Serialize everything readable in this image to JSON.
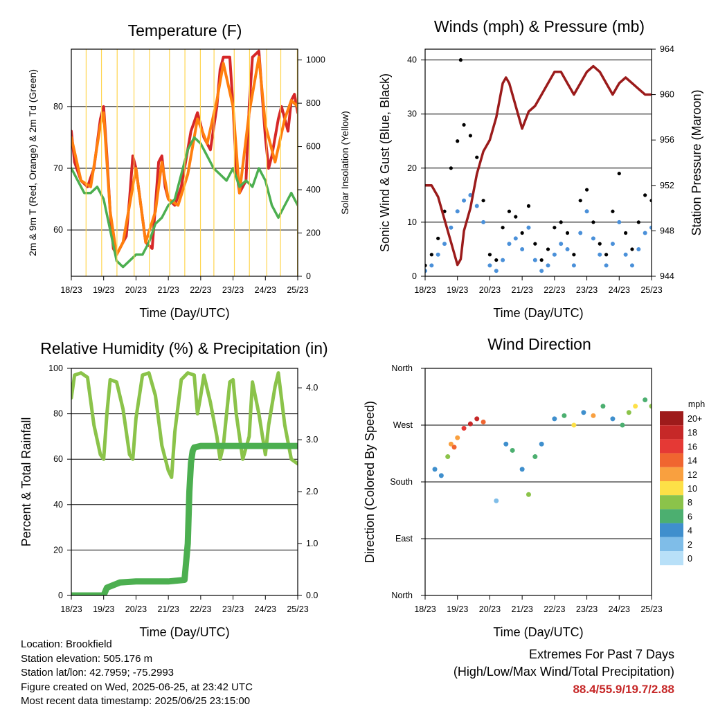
{
  "chart_data": [
    {
      "type": "line",
      "title": "Temperature (F)",
      "xlabel": "Time (Day/UTC)",
      "ylabel": "2m & 9m T (Red, Orange) & 2m Td (Green)",
      "y2label": "Solar Insolation (Yellow)",
      "xticks": [
        "18/23",
        "19/23",
        "20/23",
        "21/23",
        "22/23",
        "23/23",
        "24/23",
        "25/23"
      ],
      "ylim": [
        52.5,
        89.3
      ],
      "yticks": [
        60,
        70,
        80
      ],
      "y2lim": [
        0,
        1050
      ],
      "y2ticks": [
        0,
        200,
        400,
        600,
        800,
        1000
      ],
      "grid": "horizontal",
      "series": [
        {
          "color": "#d62728",
          "x": [
            0,
            0.1,
            0.3,
            0.5,
            0.7,
            0.9,
            1.0,
            1.1,
            1.2,
            1.3,
            1.4,
            1.6,
            1.7,
            1.8,
            1.9,
            2.0,
            2.2,
            2.3,
            2.5,
            2.6,
            2.7,
            2.8,
            2.9,
            3.0,
            3.2,
            3.4,
            3.5,
            3.7,
            3.9,
            4.0,
            4.1,
            4.3,
            4.5,
            4.6,
            4.7,
            4.9,
            5.0,
            5.1,
            5.2,
            5.4,
            5.5,
            5.6,
            5.8,
            5.9,
            6.0,
            6.1,
            6.2,
            6.4,
            6.5,
            6.6,
            6.7,
            6.8,
            6.9,
            7.0
          ],
          "y": [
            76,
            71,
            68,
            67,
            70,
            78,
            80,
            72,
            63,
            57,
            56,
            58,
            59,
            65,
            72,
            70,
            62,
            58,
            57,
            64,
            71,
            72,
            67,
            65,
            64,
            67,
            70,
            76,
            79,
            77,
            75,
            73,
            80,
            86,
            88,
            88,
            80,
            70,
            66,
            68,
            80,
            88,
            89,
            82,
            75,
            70,
            72,
            78,
            80,
            78,
            76,
            81,
            82,
            79
          ]
        },
        {
          "color": "#ff7f0e",
          "x": [
            0,
            0.3,
            0.6,
            0.9,
            1.0,
            1.2,
            1.4,
            1.6,
            1.8,
            2.0,
            2.3,
            2.6,
            2.8,
            3.0,
            3.3,
            3.6,
            3.9,
            4.2,
            4.5,
            4.7,
            5.0,
            5.2,
            5.5,
            5.8,
            6.0,
            6.3,
            6.6,
            6.8,
            7.0
          ],
          "y": [
            75,
            68,
            67,
            77,
            79,
            63,
            56,
            58,
            64,
            70,
            58,
            63,
            71,
            65,
            64,
            69,
            78,
            74,
            81,
            87,
            80,
            66,
            79,
            88,
            77,
            71,
            78,
            81,
            80
          ]
        },
        {
          "color": "#4caf50",
          "x": [
            0,
            0.2,
            0.4,
            0.6,
            0.8,
            1.0,
            1.2,
            1.4,
            1.6,
            1.8,
            2.0,
            2.2,
            2.4,
            2.6,
            2.8,
            3.0,
            3.2,
            3.4,
            3.6,
            3.8,
            4.0,
            4.2,
            4.4,
            4.6,
            4.8,
            5.0,
            5.2,
            5.4,
            5.6,
            5.8,
            6.0,
            6.2,
            6.4,
            6.6,
            6.8,
            7.0
          ],
          "y": [
            70,
            68,
            66,
            66,
            67,
            65,
            60,
            55,
            54,
            55,
            56,
            56,
            58,
            61,
            62,
            64,
            65,
            69,
            73,
            75,
            74,
            72,
            70,
            69,
            68,
            70,
            67,
            68,
            67,
            70,
            68,
            64,
            62,
            64,
            66,
            64
          ]
        },
        {
          "color": "#ffd54f",
          "x": [
            0,
            0.45,
            0.55,
            0.65,
            0.75,
            0.95,
            1.4,
            1.6,
            1.7,
            1.8,
            1.95,
            2.4,
            2.6,
            2.7,
            2.8,
            2.9,
            3.05,
            3.5,
            3.6,
            3.8,
            3.9,
            4.0,
            4.4,
            4.55,
            4.7,
            4.8,
            4.9,
            5.05,
            5.5,
            5.6,
            5.75,
            5.85,
            5.95,
            6.05,
            6.45,
            6.6,
            6.75,
            6.85,
            7.0
          ],
          "y": [
            0,
            0,
            1000,
            400,
            950,
            0,
            0,
            980,
            300,
            1000,
            0,
            0,
            900,
            1030,
            500,
            950,
            0,
            0,
            700,
            960,
            800,
            0,
            0,
            1000,
            600,
            900,
            1000,
            0,
            0,
            800,
            900,
            1000,
            850,
            0,
            0,
            500,
            800,
            950,
            0
          ]
        }
      ]
    },
    {
      "type": "scatter",
      "title": "Winds (mph) & Pressure (mb)",
      "xlabel": "Time (Day/UTC)",
      "ylabel": "Sonic Wind & Gust (Blue, Black)",
      "y2label": "Station Pressure (Maroon)",
      "xticks": [
        "18/23",
        "19/23",
        "20/23",
        "21/23",
        "22/23",
        "23/23",
        "24/23",
        "25/23"
      ],
      "ylim": [
        0,
        42
      ],
      "yticks": [
        0,
        10,
        20,
        30,
        40
      ],
      "y2lim": [
        944,
        964
      ],
      "y2ticks": [
        944,
        948,
        952,
        956,
        960,
        964
      ],
      "grid": "horizontal",
      "series": [
        {
          "color": "#4a90d9",
          "x": [
            0,
            0.2,
            0.4,
            0.6,
            0.8,
            1.0,
            1.2,
            1.4,
            1.6,
            1.8,
            2.0,
            2.2,
            2.4,
            2.6,
            2.8,
            3.0,
            3.2,
            3.4,
            3.6,
            3.8,
            4.0,
            4.2,
            4.4,
            4.6,
            4.8,
            5.0,
            5.2,
            5.4,
            5.6,
            5.8,
            6.0,
            6.2,
            6.4,
            6.6,
            6.8,
            7.0
          ],
          "y": [
            1,
            2,
            4,
            6,
            9,
            12,
            14,
            15,
            13,
            10,
            2,
            1,
            3,
            6,
            7,
            5,
            9,
            3,
            1,
            2,
            4,
            6,
            5,
            2,
            8,
            12,
            7,
            4,
            2,
            6,
            10,
            4,
            2,
            5,
            8,
            9
          ]
        },
        {
          "color": "#000000",
          "x": [
            0,
            0.2,
            0.4,
            0.6,
            0.8,
            1.0,
            1.1,
            1.2,
            1.4,
            1.6,
            1.8,
            2.0,
            2.2,
            2.4,
            2.6,
            2.8,
            3.0,
            3.2,
            3.4,
            3.6,
            3.8,
            4.0,
            4.2,
            4.4,
            4.6,
            4.8,
            5.0,
            5.2,
            5.4,
            5.6,
            5.8,
            6.0,
            6.2,
            6.4,
            6.6,
            6.8,
            7.0
          ],
          "y": [
            2,
            4,
            7,
            12,
            20,
            25,
            40,
            28,
            26,
            22,
            14,
            4,
            3,
            9,
            12,
            11,
            8,
            13,
            6,
            3,
            5,
            9,
            10,
            8,
            4,
            14,
            16,
            10,
            6,
            4,
            12,
            19,
            8,
            5,
            10,
            15,
            14
          ]
        },
        {
          "color": "#9b1b1b",
          "axis": "y2",
          "x": [
            0,
            0.2,
            0.4,
            0.6,
            0.8,
            1.0,
            1.1,
            1.2,
            1.4,
            1.6,
            1.8,
            2.0,
            2.2,
            2.4,
            2.5,
            2.6,
            2.8,
            3.0,
            3.2,
            3.4,
            3.6,
            3.8,
            4.0,
            4.2,
            4.4,
            4.6,
            4.8,
            5.0,
            5.2,
            5.4,
            5.6,
            5.8,
            6.0,
            6.2,
            6.4,
            6.6,
            6.8,
            7.0
          ],
          "y": [
            952,
            952,
            951,
            949,
            947,
            945,
            945.5,
            948,
            950,
            953,
            955,
            956,
            958,
            961,
            961.5,
            961,
            959,
            957,
            958.5,
            959,
            960,
            961,
            962,
            962,
            961,
            960,
            961,
            962,
            962.5,
            962,
            961,
            960,
            961,
            961.5,
            961,
            960.5,
            960,
            960
          ]
        }
      ]
    },
    {
      "type": "line",
      "title": "Relative Humidity (%) & Precipitation (in)",
      "xlabel": "Time (Day/UTC)",
      "ylabel": "Percent & Total Rainfall",
      "xticks": [
        "18/23",
        "19/23",
        "20/23",
        "21/23",
        "22/23",
        "23/23",
        "24/23",
        "25/23"
      ],
      "ylim": [
        0,
        100
      ],
      "yticks": [
        0,
        20,
        40,
        60,
        80,
        100
      ],
      "y2lim": [
        0,
        4.375
      ],
      "y2ticks": [
        "0.0",
        "1.0",
        "2.0",
        "3.0",
        "4.0"
      ],
      "grid": "horizontal",
      "series": [
        {
          "color": "#8bc34a",
          "x": [
            0,
            0.1,
            0.3,
            0.5,
            0.7,
            0.9,
            1.0,
            1.1,
            1.2,
            1.4,
            1.6,
            1.8,
            1.9,
            2.0,
            2.2,
            2.4,
            2.6,
            2.8,
            3.0,
            3.1,
            3.2,
            3.4,
            3.6,
            3.8,
            3.9,
            4.0,
            4.1,
            4.3,
            4.5,
            4.6,
            4.7,
            4.9,
            5.0,
            5.1,
            5.3,
            5.5,
            5.6,
            5.8,
            6.0,
            6.1,
            6.3,
            6.4,
            6.6,
            6.8,
            7.0
          ],
          "y": [
            87,
            97,
            98,
            96,
            75,
            62,
            60,
            80,
            95,
            94,
            82,
            62,
            60,
            78,
            97,
            98,
            88,
            66,
            55,
            52,
            72,
            95,
            98,
            97,
            80,
            88,
            97,
            85,
            70,
            60,
            66,
            94,
            95,
            80,
            60,
            70,
            94,
            80,
            62,
            75,
            92,
            98,
            75,
            60,
            58
          ]
        },
        {
          "color": "#4caf50",
          "axis": "y2",
          "x": [
            0,
            1.0,
            1.1,
            1.5,
            2.0,
            2.5,
            3.0,
            3.5,
            3.6,
            3.65,
            3.7,
            3.75,
            3.8,
            4.0,
            4.5,
            5.0,
            6.0,
            7.0
          ],
          "y": [
            0,
            0,
            0.15,
            0.25,
            0.27,
            0.27,
            0.27,
            0.3,
            1.0,
            2.0,
            2.55,
            2.78,
            2.85,
            2.88,
            2.88,
            2.88,
            2.88,
            2.88
          ]
        }
      ]
    },
    {
      "type": "scatter",
      "title": "Wind Direction",
      "xlabel": "Time (Day/UTC)",
      "ylabel": "Direction (Colored By Speed)",
      "xticks": [
        "18/23",
        "19/23",
        "20/23",
        "21/23",
        "22/23",
        "23/23",
        "24/23",
        "25/23"
      ],
      "yticks": [
        "North",
        "East",
        "South",
        "West",
        "North"
      ],
      "ylim": [
        0,
        360
      ],
      "grid": "horizontal",
      "colorbar": {
        "title": "mph",
        "labels": [
          "20+",
          "18",
          "16",
          "14",
          "12",
          "10",
          "8",
          "6",
          "4",
          "2",
          "0"
        ],
        "colors": [
          "#9e1b1b",
          "#c62828",
          "#e53935",
          "#f06530",
          "#f9a03f",
          "#fde047",
          "#8bc34a",
          "#4caf70",
          "#3f8fcd",
          "#7fbde8",
          "#b8e0f8"
        ]
      },
      "points": [
        {
          "x": 0.3,
          "y": 200,
          "s": 3
        },
        {
          "x": 0.5,
          "y": 190,
          "s": 4
        },
        {
          "x": 0.7,
          "y": 220,
          "s": 8
        },
        {
          "x": 0.8,
          "y": 240,
          "s": 12
        },
        {
          "x": 0.9,
          "y": 235,
          "s": 14
        },
        {
          "x": 1.0,
          "y": 250,
          "s": 12
        },
        {
          "x": 1.2,
          "y": 265,
          "s": 16
        },
        {
          "x": 1.4,
          "y": 272,
          "s": 18
        },
        {
          "x": 1.6,
          "y": 280,
          "s": 18
        },
        {
          "x": 1.8,
          "y": 275,
          "s": 14
        },
        {
          "x": 2.2,
          "y": 150,
          "s": 2
        },
        {
          "x": 2.5,
          "y": 240,
          "s": 4
        },
        {
          "x": 2.7,
          "y": 230,
          "s": 6
        },
        {
          "x": 3.0,
          "y": 200,
          "s": 4
        },
        {
          "x": 3.2,
          "y": 160,
          "s": 8
        },
        {
          "x": 3.4,
          "y": 220,
          "s": 6
        },
        {
          "x": 3.6,
          "y": 240,
          "s": 4
        },
        {
          "x": 4.0,
          "y": 280,
          "s": 4
        },
        {
          "x": 4.3,
          "y": 285,
          "s": 6
        },
        {
          "x": 4.6,
          "y": 270,
          "s": 10
        },
        {
          "x": 4.9,
          "y": 290,
          "s": 4
        },
        {
          "x": 5.2,
          "y": 285,
          "s": 12
        },
        {
          "x": 5.5,
          "y": 300,
          "s": 6
        },
        {
          "x": 5.8,
          "y": 280,
          "s": 4
        },
        {
          "x": 6.1,
          "y": 270,
          "s": 6
        },
        {
          "x": 6.3,
          "y": 290,
          "s": 8
        },
        {
          "x": 6.5,
          "y": 300,
          "s": 10
        },
        {
          "x": 6.8,
          "y": 310,
          "s": 6
        },
        {
          "x": 7.0,
          "y": 300,
          "s": 8
        }
      ]
    }
  ],
  "info": {
    "location": "Location: Brookfield",
    "elevation": "Station elevation: 505.176 m",
    "latlon": "Station lat/lon: 42.7959; -75.2993",
    "created": "Figure created on Wed, 2025-06-25, at 23:42 UTC",
    "recent": "Most recent data timestamp: 2025/06/25 23:15:00"
  },
  "extremes": {
    "title": "Extremes For Past 7 Days",
    "subtitle": "(High/Low/Max Wind/Total Precipitation)",
    "values": "88.4/55.9/19.7/2.88"
  }
}
